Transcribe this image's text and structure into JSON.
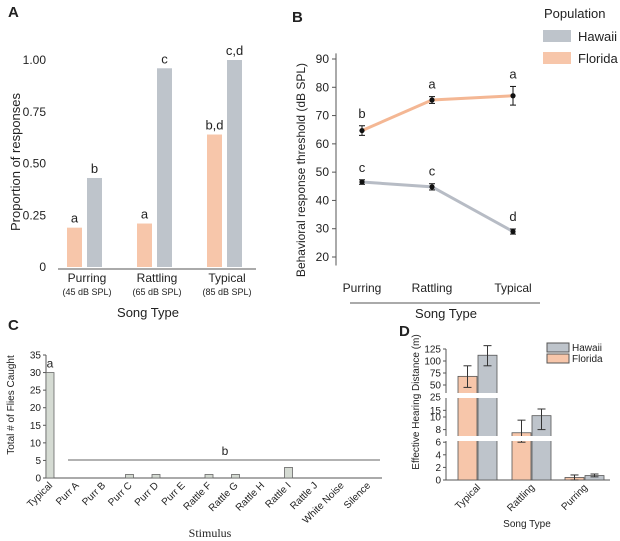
{
  "colors": {
    "hawaii": "#bec4cb",
    "florida": "#f7c6aa",
    "hawaii_line": "#b7bcc5",
    "florida_line": "#f4b794",
    "c_bar": "#d5dbd3",
    "axis": "#555555"
  },
  "legend": {
    "title": "Population",
    "hawaii": "Hawaii",
    "florida": "Florida"
  },
  "chart_data": [
    {
      "panel": "A",
      "type": "bar",
      "ylabel": "Proportion of responses",
      "xlabel": "Song Type",
      "ylim": [
        0,
        1.0
      ],
      "yticks": [
        "0",
        "0.25",
        "0.50",
        "0.75",
        "1.00"
      ],
      "categories": [
        "Purring",
        "Rattling",
        "Typical"
      ],
      "category_sublabels": [
        "(45 dB SPL)",
        "(65 dB SPL)",
        "(85 dB SPL)"
      ],
      "series": [
        {
          "name": "Florida",
          "values": [
            0.19,
            0.21,
            0.64
          ],
          "letters": [
            "a",
            "a",
            "b,d"
          ]
        },
        {
          "name": "Hawaii",
          "values": [
            0.43,
            0.96,
            1.0
          ],
          "letters": [
            "b",
            "c",
            "c,d"
          ]
        }
      ]
    },
    {
      "panel": "B",
      "type": "line",
      "ylabel": "Behavioral response threshold (dB SPL)",
      "xlabel": "Song Type",
      "ylim": [
        17,
        92
      ],
      "yticks": [
        "20",
        "30",
        "40",
        "50",
        "60",
        "70",
        "80",
        "90"
      ],
      "categories": [
        "Purring",
        "Rattling",
        "Typical"
      ],
      "series": [
        {
          "name": "Florida",
          "values": [
            64.7,
            75.5,
            77.0
          ],
          "errors": [
            1.7,
            1.2,
            3.3
          ],
          "letters": [
            "b",
            "a",
            "a"
          ]
        },
        {
          "name": "Hawaii",
          "values": [
            46.5,
            44.8,
            29.0
          ],
          "errors": [
            0.8,
            1.1,
            0.9
          ],
          "letters": [
            "c",
            "c",
            "d"
          ]
        }
      ]
    },
    {
      "panel": "C",
      "type": "bar",
      "ylabel": "Total # of Flies Caught",
      "xlabel": "Stimulus",
      "ylim": [
        0,
        35
      ],
      "yticks": [
        "0",
        "5",
        "10",
        "15",
        "20",
        "25",
        "30",
        "35"
      ],
      "categories": [
        "Typical",
        "Purr A",
        "Purr B",
        "Purr C",
        "Purr D",
        "Purr E",
        "Rattle F",
        "Rattle G",
        "Rattle H",
        "Rattle I",
        "Rattle J",
        "White Noise",
        "Silence"
      ],
      "values": [
        30,
        0,
        0,
        1,
        1,
        0,
        1,
        1,
        0,
        3,
        0,
        0,
        0
      ],
      "letters": {
        "typical": "a",
        "others": "b"
      }
    },
    {
      "panel": "D",
      "type": "bar",
      "ylabel": "Effective Hearing Distance (m)",
      "xlabel": "Song Type",
      "yticks": [
        "0",
        "2",
        "4",
        "6",
        "8",
        "10",
        "15",
        "25",
        "50",
        "75",
        "100",
        "125"
      ],
      "categories": [
        "Typical",
        "Rattling",
        "Purring"
      ],
      "series": [
        {
          "name": "Florida",
          "values": [
            68,
            7.5,
            0.4
          ],
          "err_low": [
            45,
            6.0,
            0.0
          ],
          "err_high": [
            90,
            9.5,
            0.8
          ]
        },
        {
          "name": "Hawaii",
          "values": [
            112,
            11,
            0.7
          ],
          "err_low": [
            90,
            8.0,
            0.5
          ],
          "err_high": [
            132,
            16,
            0.95
          ]
        }
      ]
    }
  ]
}
